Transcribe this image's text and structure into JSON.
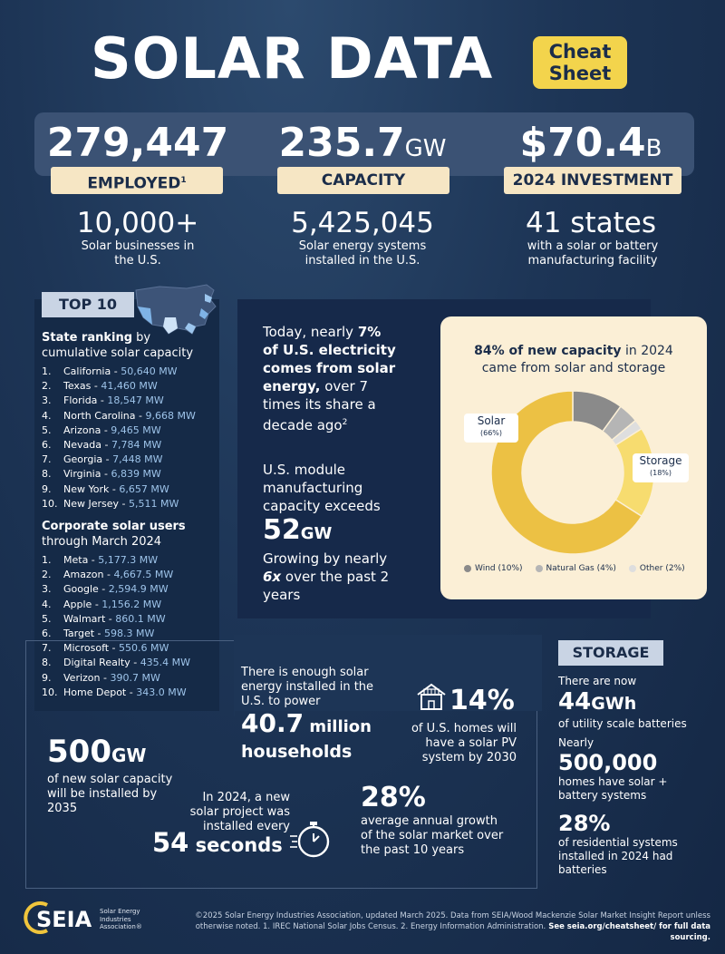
{
  "header": {
    "title": "SOLAR DATA",
    "badge_line1": "Cheat",
    "badge_line2": "Sheet"
  },
  "stats": [
    {
      "value": "279,447",
      "unit": "",
      "label": "EMPLOYED",
      "sup": "1",
      "sub_big": "10,000+",
      "sub_small": "Solar businesses in the U.S."
    },
    {
      "value": "235.7",
      "unit": "GW",
      "label": "CAPACITY",
      "sup": "",
      "sub_big": "5,425,045",
      "sub_small": "Solar energy systems installed in the U.S."
    },
    {
      "value": "$70.4",
      "unit": "B",
      "label": "2024 INVESTMENT",
      "sup": "",
      "sub_big": "41 states",
      "sub_small": "with a solar or battery manufacturing facility"
    }
  ],
  "top10": {
    "tag": "TOP 10",
    "state_heading_bold": "State ranking",
    "state_heading_rest": " by cumulative solar capacity",
    "states": [
      {
        "num": "1.",
        "name": "California",
        "val": "50,640 MW"
      },
      {
        "num": "2.",
        "name": "Texas",
        "val": "41,460 MW"
      },
      {
        "num": "3.",
        "name": "Florida",
        "val": "18,547 MW"
      },
      {
        "num": "4.",
        "name": "North Carolina",
        "val": "9,668 MW"
      },
      {
        "num": "5.",
        "name": "Arizona",
        "val": "9,465 MW"
      },
      {
        "num": "6.",
        "name": "Nevada",
        "val": "7,784 MW"
      },
      {
        "num": "7.",
        "name": "Georgia",
        "val": "7,448 MW"
      },
      {
        "num": "8.",
        "name": "Virginia",
        "val": "6,839 MW"
      },
      {
        "num": "9.",
        "name": "New York",
        "val": "6,657 MW"
      },
      {
        "num": "10.",
        "name": "New Jersey",
        "val": "5,511 MW"
      }
    ],
    "corp_heading_bold": "Corporate solar users",
    "corp_heading_rest": "through March 2024",
    "corps": [
      {
        "num": "1.",
        "name": "Meta",
        "val": "5,177.3 MW"
      },
      {
        "num": "2.",
        "name": "Amazon",
        "val": "4,667.5 MW"
      },
      {
        "num": "3.",
        "name": "Google",
        "val": "2,594.9 MW"
      },
      {
        "num": "4.",
        "name": "Apple",
        "val": "1,156.2 MW"
      },
      {
        "num": "5.",
        "name": "Walmart",
        "val": "860.1 MW"
      },
      {
        "num": "6.",
        "name": "Target",
        "val": "598.3 MW"
      },
      {
        "num": "7.",
        "name": "Microsoft",
        "val": "550.6 MW"
      },
      {
        "num": "8.",
        "name": "Digital Realty",
        "val": "435.4 MW"
      },
      {
        "num": "9.",
        "name": "Verizon",
        "val": "390.7 MW"
      },
      {
        "num": "10.",
        "name": "Home Depot",
        "val": "343.0 MW"
      }
    ]
  },
  "middle": {
    "p1_a": "Today, nearly ",
    "p1_b": "7%",
    "p1_c": "of U.S. electricity",
    "p1_d": "comes from solar",
    "p1_e": "energy,",
    "p1_f": " over 7",
    "p1_g": "times its share a",
    "p1_h": "decade ago",
    "p1_sup": "2",
    "p2_a": "U.S. module",
    "p2_b": "manufacturing",
    "p2_c": "capacity exceeds",
    "p2_num": "52",
    "p2_unit": "GW",
    "p2_d": "Growing by nearly",
    "p2_e": "6x",
    "p2_f": " over the past 2",
    "p2_g": "years"
  },
  "donut": {
    "title_bold": "84% of new capacity",
    "title_rest": " in 2024",
    "title_line2": "came from solar and storage",
    "solar_label": "Solar",
    "solar_pct": "(66%)",
    "storage_label": "Storage",
    "storage_pct": "(18%)",
    "legend": [
      {
        "label": "Wind (10%)",
        "color": "#8a8a8a"
      },
      {
        "label": "Natural Gas (4%)",
        "color": "#b5b5b5"
      },
      {
        "label": "Other (2%)",
        "color": "#dedede"
      }
    ]
  },
  "chart_data": {
    "type": "pie",
    "categories": [
      "Solar",
      "Storage",
      "Wind",
      "Natural Gas",
      "Other"
    ],
    "values": [
      66,
      18,
      10,
      4,
      2
    ],
    "colors": [
      "#ecc144",
      "#f7dc6f",
      "#8a8a8a",
      "#b5b5b5",
      "#dedede"
    ],
    "title": "84% of new capacity in 2024 came from solar and storage",
    "legend_position": "bottom"
  },
  "bottom": {
    "gw_num": "500",
    "gw_unit": "GW",
    "gw_l1": "of new solar capacity",
    "gw_l2": "will be installed by",
    "gw_l3": "2035",
    "hh_l1": "There is enough solar",
    "hh_l2": "energy installed in the",
    "hh_l3": "U.S. to power",
    "hh_num": "40.7",
    "hh_word1": " million",
    "hh_word2": "households",
    "homes_pct": "14%",
    "homes_l1": "of U.S. homes will",
    "homes_l2": "have a solar PV",
    "homes_l3": "system by 2030",
    "sec_l1": "In 2024, a new",
    "sec_l2": "solar project was",
    "sec_l3": "installed every",
    "sec_num": "54",
    "sec_word": " seconds",
    "growth_pct": "28%",
    "growth_l1": "average annual growth",
    "growth_l2": "of the solar market over",
    "growth_l3": "the past 10 years"
  },
  "storage": {
    "tag": "STORAGE",
    "a1": "There are now",
    "a_num": "44",
    "a_unit": "GWh",
    "a2": "of utility scale batteries",
    "b1": "Nearly",
    "b_num": "500,000",
    "b2": "homes have solar +",
    "b3": "battery systems",
    "c_num": "28%",
    "c2": "of residential systems",
    "c3": "installed in 2024 had",
    "c4": "batteries"
  },
  "footer": {
    "logo": "SEIA",
    "org_l1": "Solar Energy",
    "org_l2": "Industries",
    "org_l3": "Association®",
    "note_l1": "©2025 Solar Energy Industries Association, updated March 2025. Data from SEIA/Wood Mackenzie Solar Market Insight Report unless",
    "note_l2": "otherwise noted. 1. IREC National Solar Jobs Census. 2. Energy Information Administration.",
    "note_bold": " See seia.org/cheatsheet/ for full data sourcing."
  }
}
